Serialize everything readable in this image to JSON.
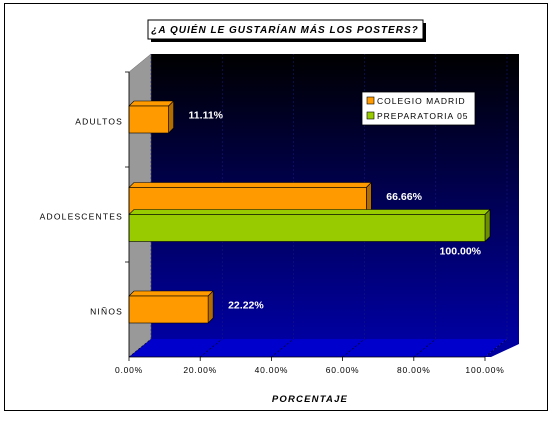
{
  "chart_data": {
    "type": "bar",
    "orientation": "horizontal",
    "title": "¿A QUIÉN LE GUSTARÍAN MÁS LOS POSTERS?",
    "xlabel": "PORCENTAJE",
    "ylabel": "",
    "categories": [
      "ADULTOS",
      "ADOLESCENTES",
      "NIÑOS"
    ],
    "series": [
      {
        "name": "COLEGIO MADRID",
        "values": [
          0.1111,
          0.6666,
          0.2222
        ],
        "labels": [
          "11.11%",
          "66.66%",
          "22.22%"
        ],
        "color": "#ff9a00"
      },
      {
        "name": "PREPARATORIA 05",
        "values": [
          null,
          1.0,
          null
        ],
        "labels": [
          "",
          "100.00%",
          ""
        ],
        "color": "#99cc00"
      }
    ],
    "xlim": [
      0,
      1
    ],
    "x_ticks": [
      "0.00%",
      "20.00%",
      "40.00%",
      "60.00%",
      "80.00%",
      "100.00%"
    ],
    "grid": true,
    "legend_position": "top-right",
    "style": "3d",
    "plot_background": "#000066",
    "floor_color": "#0000cc",
    "wall_color": "#999999"
  }
}
